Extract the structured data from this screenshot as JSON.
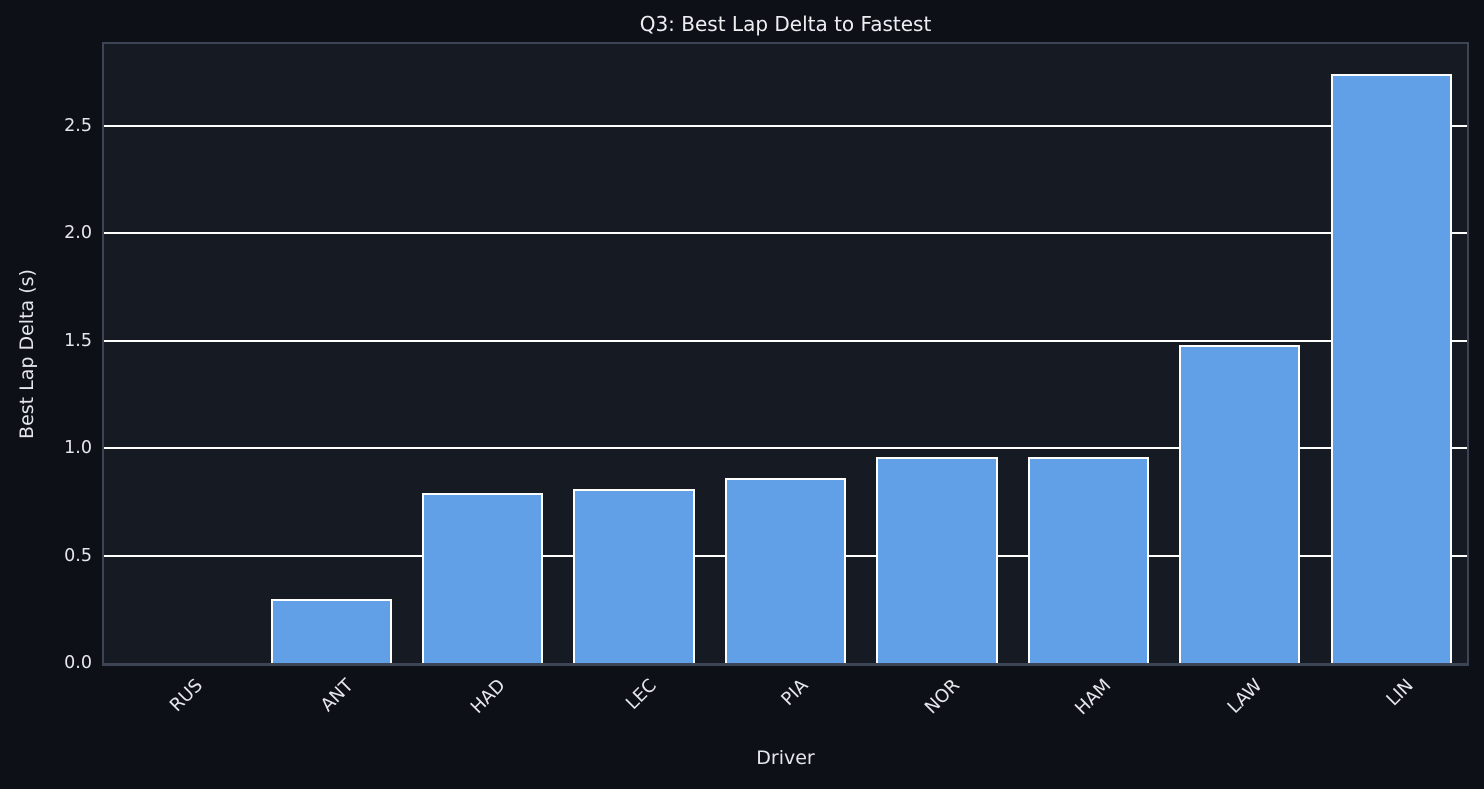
{
  "chart_data": {
    "type": "bar",
    "title": "Q3: Best Lap Delta to Fastest",
    "xlabel": "Driver",
    "ylabel": "Best Lap Delta (s)",
    "categories": [
      "RUS",
      "ANT",
      "HAD",
      "LEC",
      "PIA",
      "NOR",
      "HAM",
      "LAW",
      "LIN"
    ],
    "values": [
      0.0,
      0.3,
      0.79,
      0.81,
      0.86,
      0.96,
      0.96,
      1.48,
      2.74
    ],
    "yticks": [
      0.0,
      0.5,
      1.0,
      1.5,
      2.0,
      2.5
    ],
    "ylim": [
      0,
      2.88
    ],
    "grid": true,
    "legend": "none",
    "colors": {
      "figure_background": "#0d1117",
      "plot_background": "#151a23",
      "bar_fill": "#619fe6",
      "bar_edge": "#ffffff",
      "gridline": "#ffffff",
      "spine": "#3d4554",
      "text": "#e4e6ea",
      "title_text": "#eceef1"
    }
  }
}
